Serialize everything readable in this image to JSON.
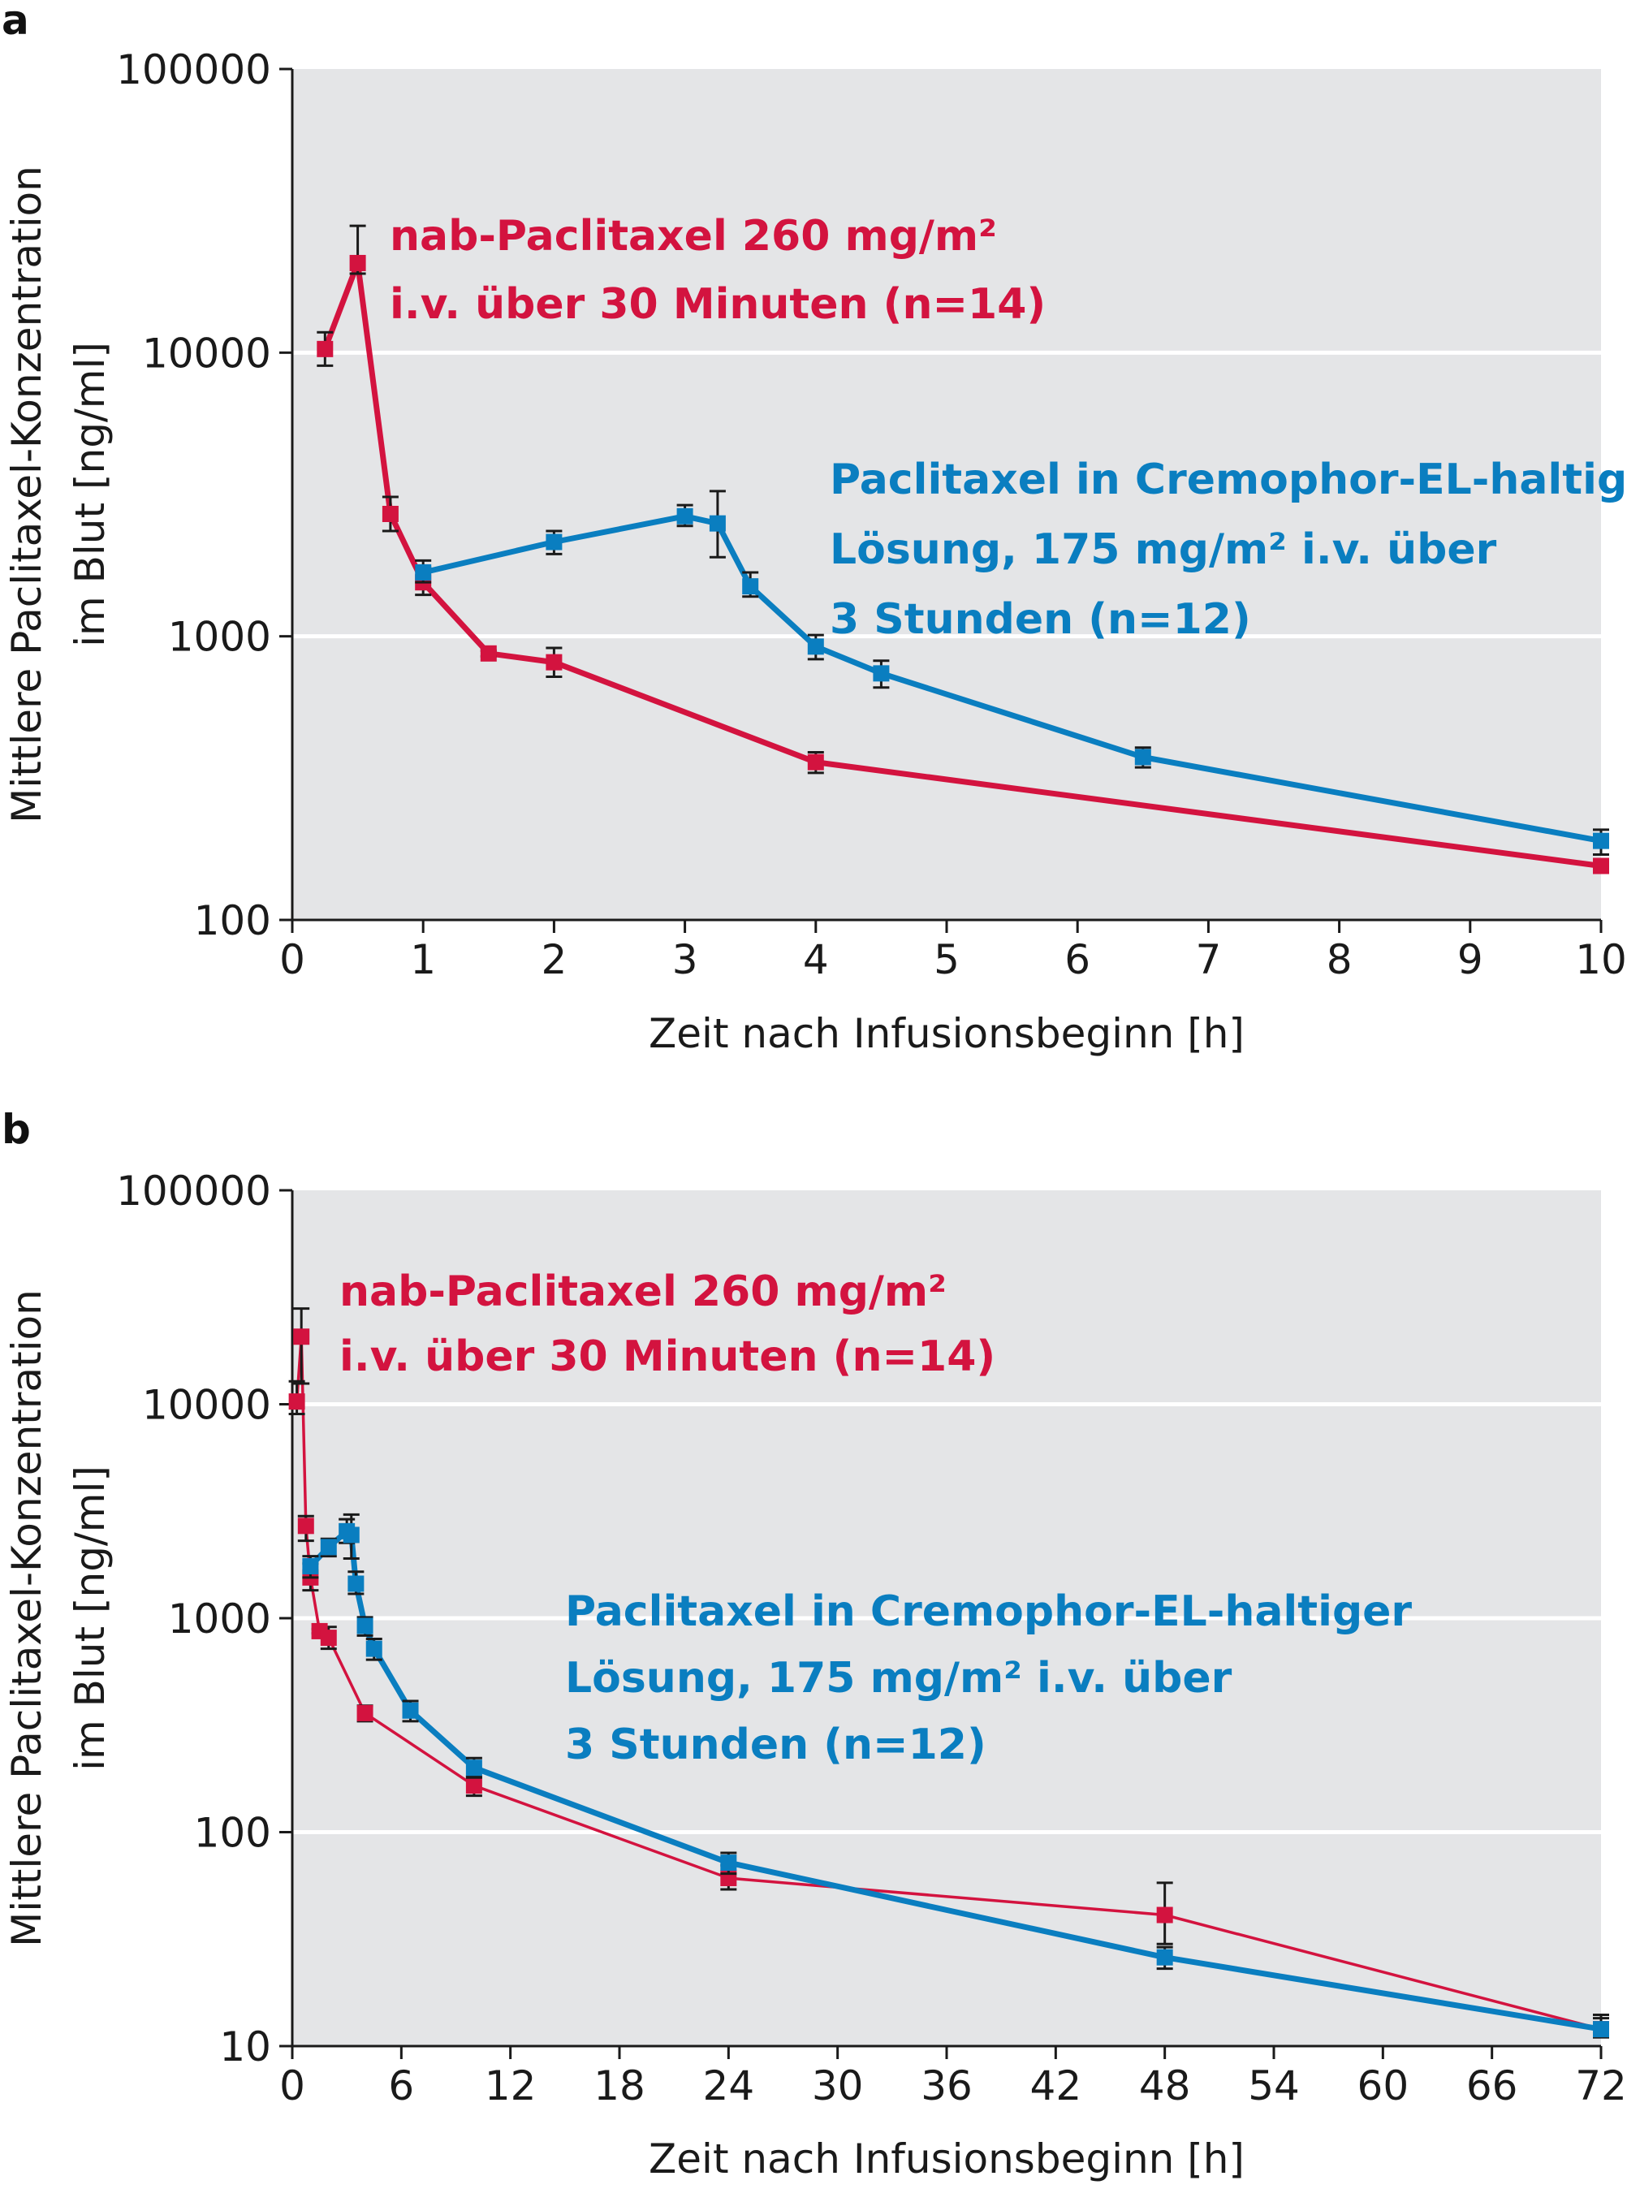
{
  "chart_data": [
    {
      "panel_label": "a",
      "type": "line",
      "xlabel": "Zeit nach Infusionsbeginn [h]",
      "ylabel_line1": "Mittlere Paclitaxel-Konzentration",
      "ylabel_line2": "im Blut [ng/ml]",
      "xlim": [
        0,
        10
      ],
      "ylim": [
        100,
        100000
      ],
      "yscale": "log",
      "x_ticks": [
        "0",
        "1",
        "2",
        "3",
        "4",
        "5",
        "6",
        "7",
        "8",
        "9",
        "10"
      ],
      "y_ticks": [
        "100",
        "1000",
        "10000",
        "100000"
      ],
      "grid": "horizontal",
      "background_color": "#e4e5e7",
      "series": [
        {
          "name_lines": [
            "nab-Paclitaxel 260 mg/m²",
            "i.v. über 30 Minuten (n=14)"
          ],
          "color": "#d3133f",
          "x": [
            0.25,
            0.5,
            0.75,
            1.0,
            1.5,
            2.0,
            4.0,
            10.0
          ],
          "y": [
            10300,
            20700,
            2700,
            1550,
            870,
            810,
            360,
            155
          ],
          "err_low": [
            9000,
            19000,
            2350,
            1400,
            850,
            720,
            330,
            150
          ],
          "err_high": [
            11800,
            28000,
            3100,
            1750,
            890,
            910,
            390,
            162
          ]
        },
        {
          "name_lines": [
            "Paclitaxel in Cremophor-EL-haltiger",
            "Lösung, 175 mg/m² i.v. über",
            "3 Stunden (n=12)"
          ],
          "color": "#0a7ec0",
          "x": [
            1.0,
            2.0,
            3.0,
            3.25,
            3.5,
            4.0,
            4.5,
            6.5,
            10.0
          ],
          "y": [
            1680,
            2150,
            2650,
            2500,
            1500,
            920,
            740,
            375,
            190
          ],
          "err_low": [
            1550,
            1950,
            2450,
            1900,
            1380,
            830,
            660,
            345,
            170
          ],
          "err_high": [
            1850,
            2350,
            2900,
            3250,
            1680,
            1010,
            820,
            405,
            208
          ]
        }
      ]
    },
    {
      "panel_label": "b",
      "type": "line",
      "xlabel": "Zeit nach Infusionsbeginn [h]",
      "ylabel_line1": "Mittlere Paclitaxel-Konzentration",
      "ylabel_line2": "im Blut [ng/ml]",
      "xlim": [
        0,
        72
      ],
      "ylim": [
        10,
        100000
      ],
      "yscale": "log",
      "x_ticks": [
        "0",
        "6",
        "12",
        "18",
        "24",
        "30",
        "36",
        "42",
        "48",
        "54",
        "60",
        "66",
        "72"
      ],
      "y_ticks": [
        "10",
        "100",
        "1000",
        "10000",
        "100000"
      ],
      "grid": "horizontal",
      "background_color": "#e4e5e7",
      "series": [
        {
          "name_lines": [
            "nab-Paclitaxel 260 mg/m²",
            "i.v. über 30 Minuten (n=14)"
          ],
          "color": "#d3133f",
          "x": [
            0.25,
            0.5,
            0.75,
            1.0,
            1.5,
            2.0,
            4.0,
            10.0,
            24.0,
            48.0,
            72.0
          ],
          "y": [
            10300,
            20700,
            2700,
            1550,
            870,
            810,
            360,
            165,
            61,
            41,
            12
          ],
          "err_low": [
            9000,
            12500,
            2300,
            1350,
            850,
            720,
            330,
            148,
            54,
            30,
            11
          ],
          "err_high": [
            12800,
            28000,
            3000,
            1800,
            890,
            910,
            390,
            182,
            70,
            58,
            14
          ]
        },
        {
          "name_lines": [
            "Paclitaxel in Cremophor-EL-haltiger",
            "Lösung, 175 mg/m² i.v. über",
            "3 Stunden (n=12)"
          ],
          "color": "#0a7ec0",
          "x": [
            1.0,
            2.0,
            3.0,
            3.25,
            3.5,
            4.0,
            4.5,
            6.5,
            10.0,
            24.0,
            48.0,
            72.0
          ],
          "y": [
            1750,
            2150,
            2550,
            2450,
            1450,
            920,
            720,
            370,
            200,
            72,
            26,
            12
          ],
          "err_low": [
            1550,
            1950,
            2250,
            1900,
            1300,
            830,
            640,
            330,
            180,
            64,
            23,
            11
          ],
          "err_high": [
            1950,
            2350,
            2900,
            3050,
            1650,
            1010,
            800,
            410,
            222,
            80,
            29,
            13.5
          ]
        }
      ]
    }
  ]
}
